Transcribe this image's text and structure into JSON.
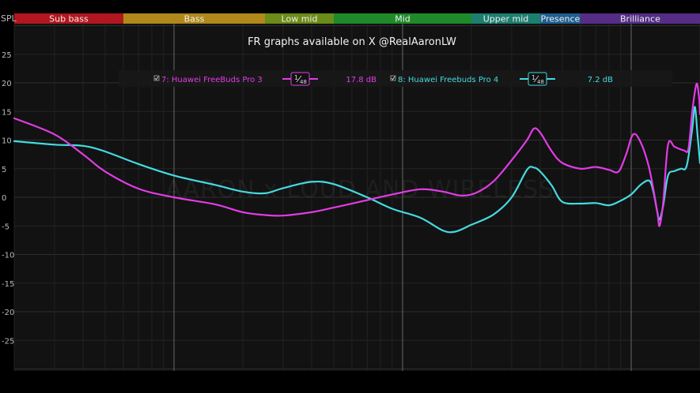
{
  "chart_data": {
    "type": "line",
    "title": "FR graphs available on X @RealAaronLW",
    "ylabel": "SPL",
    "ylim": [
      -30,
      30
    ],
    "yticks": [
      25,
      20,
      15,
      10,
      5,
      0,
      -5,
      -10,
      -15,
      -20,
      -25
    ],
    "x_scale": "log",
    "x_range_hz": [
      20,
      20000
    ],
    "bands": [
      {
        "name": "Sub bass",
        "color": "#b2161e"
      },
      {
        "name": "Bass",
        "color": "#b0891a"
      },
      {
        "name": "Low mid",
        "color": "#6c8c19"
      },
      {
        "name": "Mid",
        "color": "#1f8a2a"
      },
      {
        "name": "Upper mid",
        "color": "#1d7f6f"
      },
      {
        "name": "Presence",
        "color": "#1f5f91"
      },
      {
        "name": "Brilliance",
        "color": "#552d86"
      }
    ],
    "watermark": "AARON x LOUD AND WIRELESS",
    "series": [
      {
        "name": "7: Huawei FreeBuds Pro 3",
        "smoothing": "1/48",
        "offset": "17.8 dB",
        "color": "#e23ce6",
        "points": [
          [
            20,
            13.8
          ],
          [
            30,
            11.0
          ],
          [
            40,
            7.5
          ],
          [
            50,
            4.5
          ],
          [
            70,
            1.5
          ],
          [
            100,
            0.0
          ],
          [
            150,
            -1.2
          ],
          [
            200,
            -2.6
          ],
          [
            250,
            -3.1
          ],
          [
            300,
            -3.2
          ],
          [
            400,
            -2.6
          ],
          [
            500,
            -1.8
          ],
          [
            700,
            -0.5
          ],
          [
            900,
            0.5
          ],
          [
            1200,
            1.4
          ],
          [
            1500,
            1.0
          ],
          [
            1800,
            0.3
          ],
          [
            2100,
            0.8
          ],
          [
            2500,
            2.8
          ],
          [
            3000,
            6.5
          ],
          [
            3500,
            10.0
          ],
          [
            3750,
            12.0
          ],
          [
            4000,
            11.3
          ],
          [
            4500,
            8.0
          ],
          [
            5000,
            6.0
          ],
          [
            6000,
            5.0
          ],
          [
            7000,
            5.3
          ],
          [
            8000,
            4.8
          ],
          [
            8800,
            4.5
          ],
          [
            9500,
            7.5
          ],
          [
            10200,
            11.0
          ],
          [
            11000,
            9.6
          ],
          [
            12000,
            5.0
          ],
          [
            13000,
            -2.5
          ],
          [
            13300,
            -5.0
          ],
          [
            13800,
            -1.0
          ],
          [
            14500,
            9.2
          ],
          [
            15500,
            8.8
          ],
          [
            17000,
            8.2
          ],
          [
            17800,
            8.5
          ],
          [
            18500,
            15.0
          ],
          [
            19300,
            19.8
          ],
          [
            19800,
            17.5
          ],
          [
            20000,
            14.5
          ]
        ]
      },
      {
        "name": "8: Huawei Freebuds Pro 4",
        "smoothing": "1/48",
        "offset": "7.2 dB",
        "color": "#45dae0",
        "points": [
          [
            20,
            9.8
          ],
          [
            30,
            9.2
          ],
          [
            40,
            9.0
          ],
          [
            50,
            8.0
          ],
          [
            70,
            5.8
          ],
          [
            100,
            3.8
          ],
          [
            150,
            2.2
          ],
          [
            200,
            1.0
          ],
          [
            250,
            0.7
          ],
          [
            300,
            1.6
          ],
          [
            400,
            2.7
          ],
          [
            500,
            2.3
          ],
          [
            700,
            0.0
          ],
          [
            900,
            -2.0
          ],
          [
            1200,
            -3.6
          ],
          [
            1500,
            -5.8
          ],
          [
            1700,
            -6.0
          ],
          [
            2000,
            -4.8
          ],
          [
            2500,
            -3.0
          ],
          [
            3000,
            0.0
          ],
          [
            3500,
            4.8
          ],
          [
            3750,
            5.2
          ],
          [
            4000,
            4.5
          ],
          [
            4500,
            2.0
          ],
          [
            5000,
            -0.8
          ],
          [
            6000,
            -1.1
          ],
          [
            7000,
            -1.0
          ],
          [
            8000,
            -1.4
          ],
          [
            9000,
            -0.6
          ],
          [
            10000,
            0.5
          ],
          [
            11000,
            2.2
          ],
          [
            12000,
            2.9
          ],
          [
            12500,
            1.0
          ],
          [
            13000,
            -2.5
          ],
          [
            13300,
            -3.9
          ],
          [
            13800,
            -1.5
          ],
          [
            14500,
            3.8
          ],
          [
            15500,
            4.6
          ],
          [
            16500,
            5.0
          ],
          [
            17500,
            5.5
          ],
          [
            18500,
            12.0
          ],
          [
            19000,
            15.8
          ],
          [
            19500,
            11.0
          ],
          [
            20000,
            6.0
          ]
        ]
      }
    ]
  }
}
